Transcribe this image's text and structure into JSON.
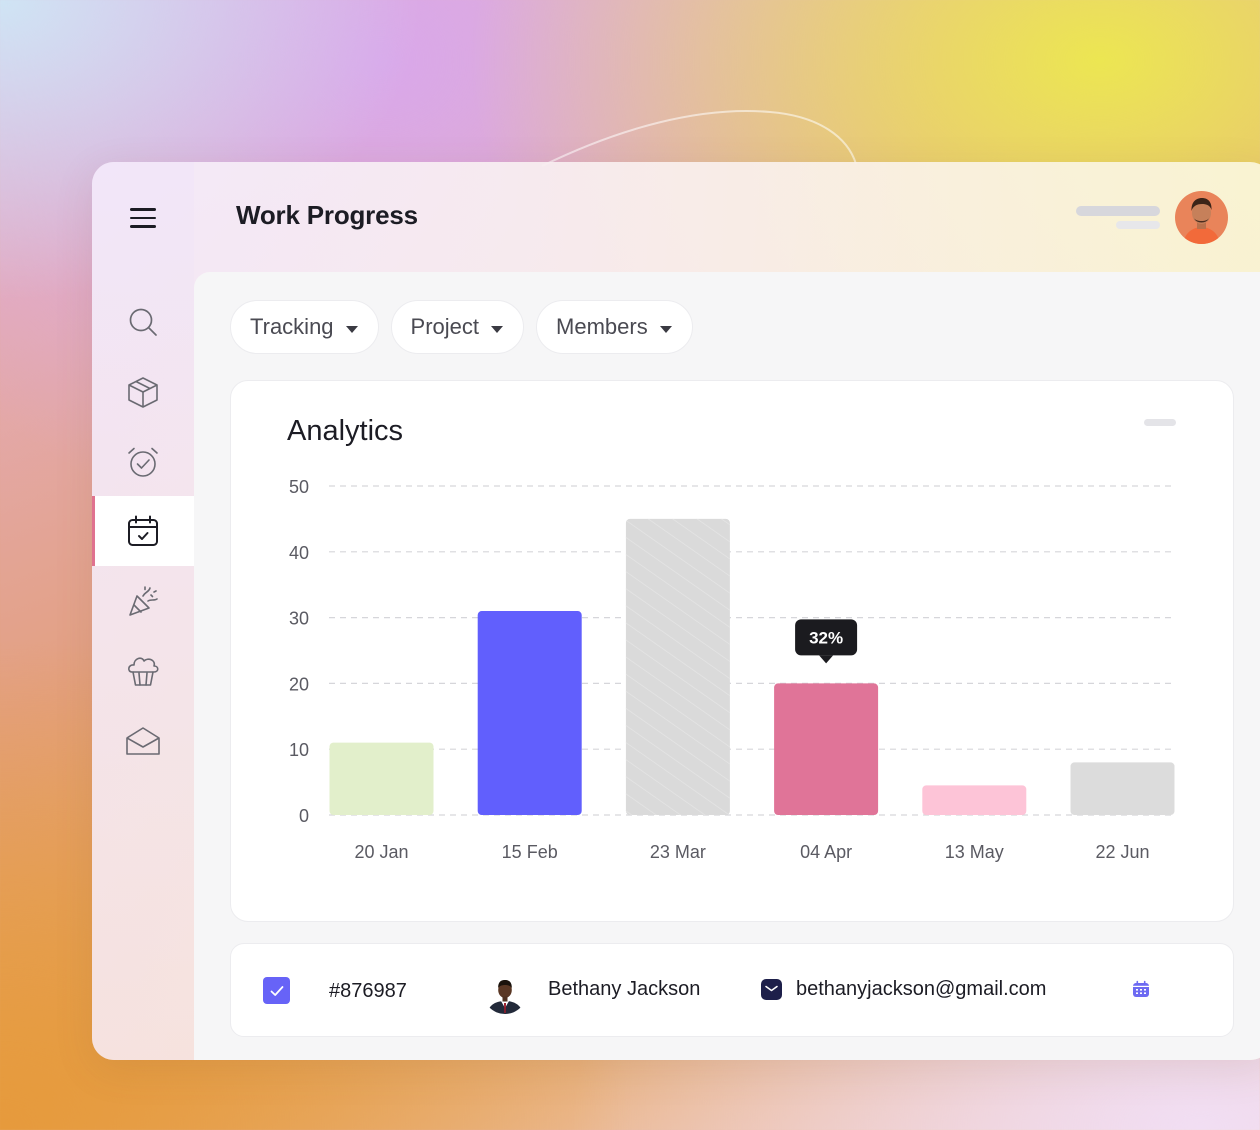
{
  "header": {
    "title": "Work Progress"
  },
  "sidebar": {
    "items": [
      {
        "icon": "search-icon",
        "active": false
      },
      {
        "icon": "box-icon",
        "active": false
      },
      {
        "icon": "alarm-clock-icon",
        "active": false
      },
      {
        "icon": "calendar-check-icon",
        "active": true
      },
      {
        "icon": "party-popper-icon",
        "active": false
      },
      {
        "icon": "cupcake-icon",
        "active": false
      },
      {
        "icon": "mail-open-icon",
        "active": false
      }
    ]
  },
  "filters": [
    {
      "label": "Tracking"
    },
    {
      "label": "Project"
    },
    {
      "label": "Members"
    }
  ],
  "analytics": {
    "title": "Analytics"
  },
  "chart_data": {
    "type": "bar",
    "categories": [
      "20 Jan",
      "15 Feb",
      "23 Mar",
      "04 Apr",
      "13 May",
      "22 Jun"
    ],
    "values": [
      11,
      31,
      45,
      20,
      4.5,
      8
    ],
    "colors": [
      "#e2efcb",
      "#615ffd",
      "#dadada",
      "#e07498",
      "#fdc4d7",
      "#dcdcdc"
    ],
    "yticks": [
      0,
      10,
      20,
      30,
      40,
      50
    ],
    "ylim": [
      0,
      50
    ],
    "grid": true,
    "tooltip": {
      "category": "04 Apr",
      "text": "32%"
    }
  },
  "row": {
    "id": "#876987",
    "name": "Bethany Jackson",
    "email": "bethanyjackson@gmail.com",
    "checked": true
  },
  "colors": {
    "accent": "#6763f7",
    "active_marker": "#e0728f"
  }
}
